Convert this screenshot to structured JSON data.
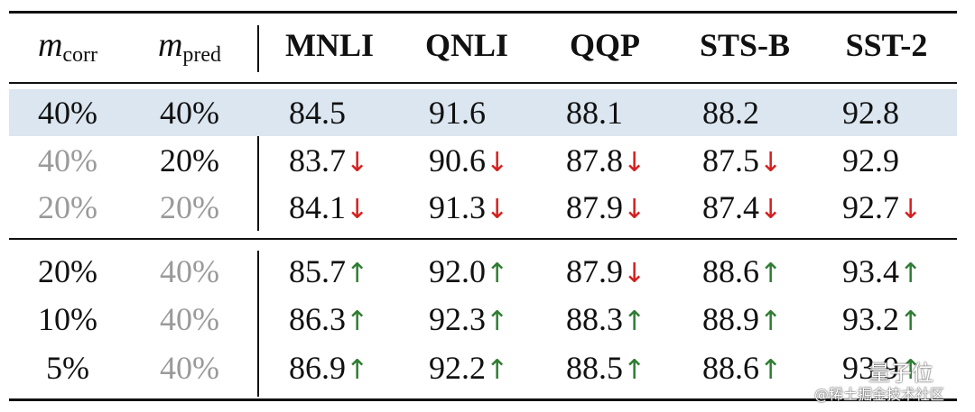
{
  "table": {
    "header": {
      "corr": {
        "symbol": "m",
        "subscript": "corr"
      },
      "pred": {
        "symbol": "m",
        "subscript": "pred"
      },
      "tasks": [
        "MNLI",
        "QNLI",
        "QQP",
        "STS-B",
        "SST-2"
      ]
    },
    "groups": [
      {
        "rows": [
          {
            "corr": "40%",
            "pred": "40%",
            "highlight": true,
            "cells": [
              {
                "value": "84.5"
              },
              {
                "value": "91.6"
              },
              {
                "value": "88.1"
              },
              {
                "value": "88.2"
              },
              {
                "value": "92.8"
              }
            ]
          },
          {
            "corr": "40%",
            "corr_muted": true,
            "pred": "20%",
            "cells": [
              {
                "value": "83.7",
                "arrow": "↓"
              },
              {
                "value": "90.6",
                "arrow": "↓"
              },
              {
                "value": "87.8",
                "arrow": "↓"
              },
              {
                "value": "87.5",
                "arrow": "↓"
              },
              {
                "value": "92.9"
              }
            ]
          },
          {
            "corr": "20%",
            "corr_muted": true,
            "pred": "20%",
            "pred_muted": true,
            "cells": [
              {
                "value": "84.1",
                "arrow": "↓"
              },
              {
                "value": "91.3",
                "arrow": "↓"
              },
              {
                "value": "87.9",
                "arrow": "↓"
              },
              {
                "value": "87.4",
                "arrow": "↓"
              },
              {
                "value": "92.7",
                "arrow": "↓"
              }
            ]
          }
        ]
      },
      {
        "rows": [
          {
            "corr": "20%",
            "pred": "40%",
            "pred_muted": true,
            "cells": [
              {
                "value": "85.7",
                "arrow": "↑"
              },
              {
                "value": "92.0",
                "arrow": "↑"
              },
              {
                "value": "87.9",
                "arrow": "↓"
              },
              {
                "value": "88.6",
                "arrow": "↑"
              },
              {
                "value": "93.4",
                "arrow": "↑"
              }
            ]
          },
          {
            "corr": "10%",
            "pred": "40%",
            "pred_muted": true,
            "cells": [
              {
                "value": "86.3",
                "arrow": "↑"
              },
              {
                "value": "92.3",
                "arrow": "↑"
              },
              {
                "value": "88.3",
                "arrow": "↑"
              },
              {
                "value": "88.9",
                "arrow": "↑"
              },
              {
                "value": "93.2",
                "arrow": "↑"
              }
            ]
          },
          {
            "corr": "5%",
            "pred": "40%",
            "pred_muted": true,
            "cells": [
              {
                "value": "86.9",
                "arrow": "↑"
              },
              {
                "value": "92.2",
                "arrow": "↑"
              },
              {
                "value": "88.5",
                "arrow": "↑"
              },
              {
                "value": "88.6",
                "arrow": "↑"
              },
              {
                "value": "93.9",
                "arrow": "↑"
              }
            ]
          }
        ]
      }
    ],
    "watermark": {
      "brand": "量子位",
      "source": "@稀土掘金技术社区"
    }
  }
}
